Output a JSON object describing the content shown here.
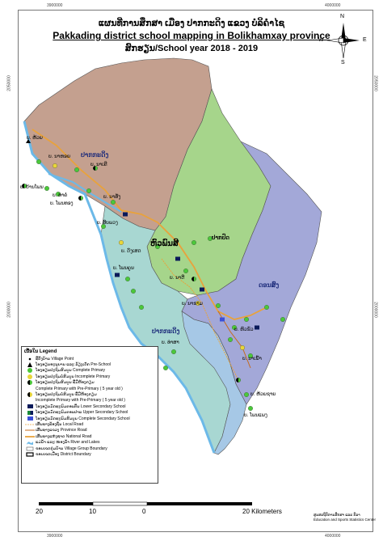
{
  "title": {
    "lao": "ແຜນທີ່ການສຶກສາ ເມືອງ ປາກກະດິງ ແຂວງ ບໍລິຄໍາໄຊ",
    "english": "Pakkading district school mapping in Bolikhamxay province",
    "year": "ສົກຮຽນ/School year 2018 - 2019"
  },
  "coordinates": {
    "top": [
      "3900000",
      "4000000"
    ],
    "bottom": [
      "3900000",
      "4000000"
    ],
    "left": [
      "2000000",
      "2050000"
    ],
    "right": [
      "2000000",
      "2050000"
    ]
  },
  "north_arrow": {
    "n": "N",
    "s": "S",
    "e": "E",
    "w": "W"
  },
  "zones": {
    "colors": {
      "north": "#c4a08f",
      "center": "#a6d58b",
      "east": "#a3a8d8",
      "southwest": "#a8d7d2",
      "south": "#a6c8e6"
    },
    "labels": {
      "z1": "ປາກກະດິງ",
      "z2": "ປາກປົດ",
      "z3": "ຫົວພົນສີ",
      "z4": "ດອນສົງ",
      "z5": "ປາກກະດິງ"
    }
  },
  "villages": {
    "v1": "ບ. ຫ້ວຍ",
    "v2": "ບ. ນາຫອຍ",
    "v3": "ບ. ນາເຄີ",
    "v4": "ບ. ບ້ານໂພນ",
    "v5": "ບ. ໂພນທອງ",
    "v6": "ບ. ທ່າຄໍ່",
    "v7": "ບ. ນາສັງ",
    "v8": "ບ. ສົບພວງ",
    "v9": "ບ. ດົງເສດ",
    "v10": "ບ. ໂພນຄູນ",
    "v11": "ບ. ນາດີ",
    "v12": "ບ. ນາຂາມ",
    "v13": "ບ. ທ່າສາ",
    "v14": "ບ. ຫົວຂົວ",
    "v15": "ບ. ນາເພົ້າ",
    "v16": "ບ. ຫ້ວຍຊາຍ",
    "v17": "ບ. ໂພນແພງ"
  },
  "legend": {
    "title": "ເນື້ອໃນ Legend",
    "items": [
      "ທີ່ຕັ້ງບ້ານ Village Point",
      "ໂຮງຮຽນອະນຸບານ ແລະ ລ້ຽງເດັກ Pre-School",
      "ໂຮງຮຽນປະຖົມສົມບູນ Complete Primary",
      "ໂຮງຮຽນປະຖົມບໍ່ສົມບູນ Incomplete  Primary",
      "ໂຮງຮຽນປະຖົມສົມບູນ ທີ່ມີຫ້ອງກຽມ",
      "Complete Primary with Pre-Primary ( 5 year old )",
      "ໂຮງຮຽນປະຖົມບໍ່ສົມບູນ ທີ່ມີຫ້ອງກຽມ",
      "Incomplete  Primary with Pre-Primary ( 5 year old )",
      "ໂຮງຮຽນມັດທະຍົມຕອນຕົ້ນ Lower Secondary School",
      "ໂຮງຮຽນມັດທະຍົມຕອນປາຍ Upper Secondary School",
      "ໂຮງຮຽນມັດທະຍົມສົມບູນ Complete Secondary School",
      "ເສັ້ນທາງທ້ອງຖິ່ນ Local Road",
      "ເສັ້ນທາງແຂວງ Province Road",
      "ເສັ້ນທາງແຫ່ງຊາດ National Road",
      "ແມ່ນ້ຳ ແລະ ໜອງນ້ຳ River and Lakes",
      "ຂອບເຂດກຸ່ມບ້ານ Village Group Boundary",
      "ຂອບເຂດເມືອງ District Boundary"
    ]
  },
  "scale": {
    "labels": [
      "20",
      "10",
      "0",
      "20 Kilometers"
    ]
  },
  "credit": {
    "line1": "ສູນສະຖິຕິການສຶກສາ ແລະ ກິລາ",
    "line2": "Education and Sports Statistics Center"
  }
}
